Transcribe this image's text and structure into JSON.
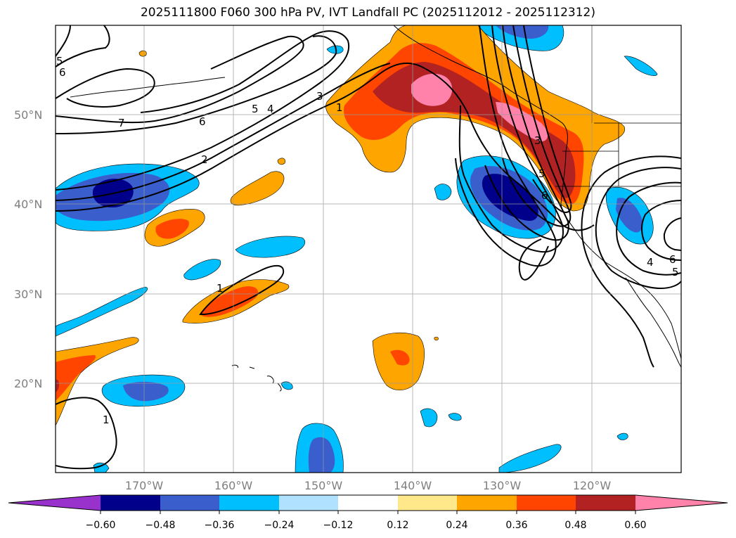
{
  "title": "2025111800 F060 300 hPa PV, IVT Landfall PC (2025112012 - 2025112312)",
  "map": {
    "lat_labels": [
      "50°N",
      "40°N",
      "30°N",
      "20°N"
    ],
    "lon_labels": [
      "170°W",
      "160°W",
      "150°W",
      "140°W",
      "130°W",
      "120°W"
    ],
    "contour_labels": [
      "5",
      "6",
      "7",
      "6",
      "5",
      "4",
      "3",
      "1",
      "2",
      "1",
      "1",
      "3",
      "5",
      "6",
      "4",
      "6",
      "5"
    ]
  },
  "colorbar": {
    "levels": [
      "−0.60",
      "−0.48",
      "−0.36",
      "−0.24",
      "−0.12",
      "0.12",
      "0.24",
      "0.36",
      "0.48",
      "0.60"
    ],
    "colors": [
      "#9932cc",
      "#00008b",
      "#3a5fcd",
      "#00bfff",
      "#b0e2ff",
      "#ffffff",
      "#ffe88a",
      "#ffa500",
      "#ff4500",
      "#b22222",
      "#ff82ab"
    ]
  }
}
